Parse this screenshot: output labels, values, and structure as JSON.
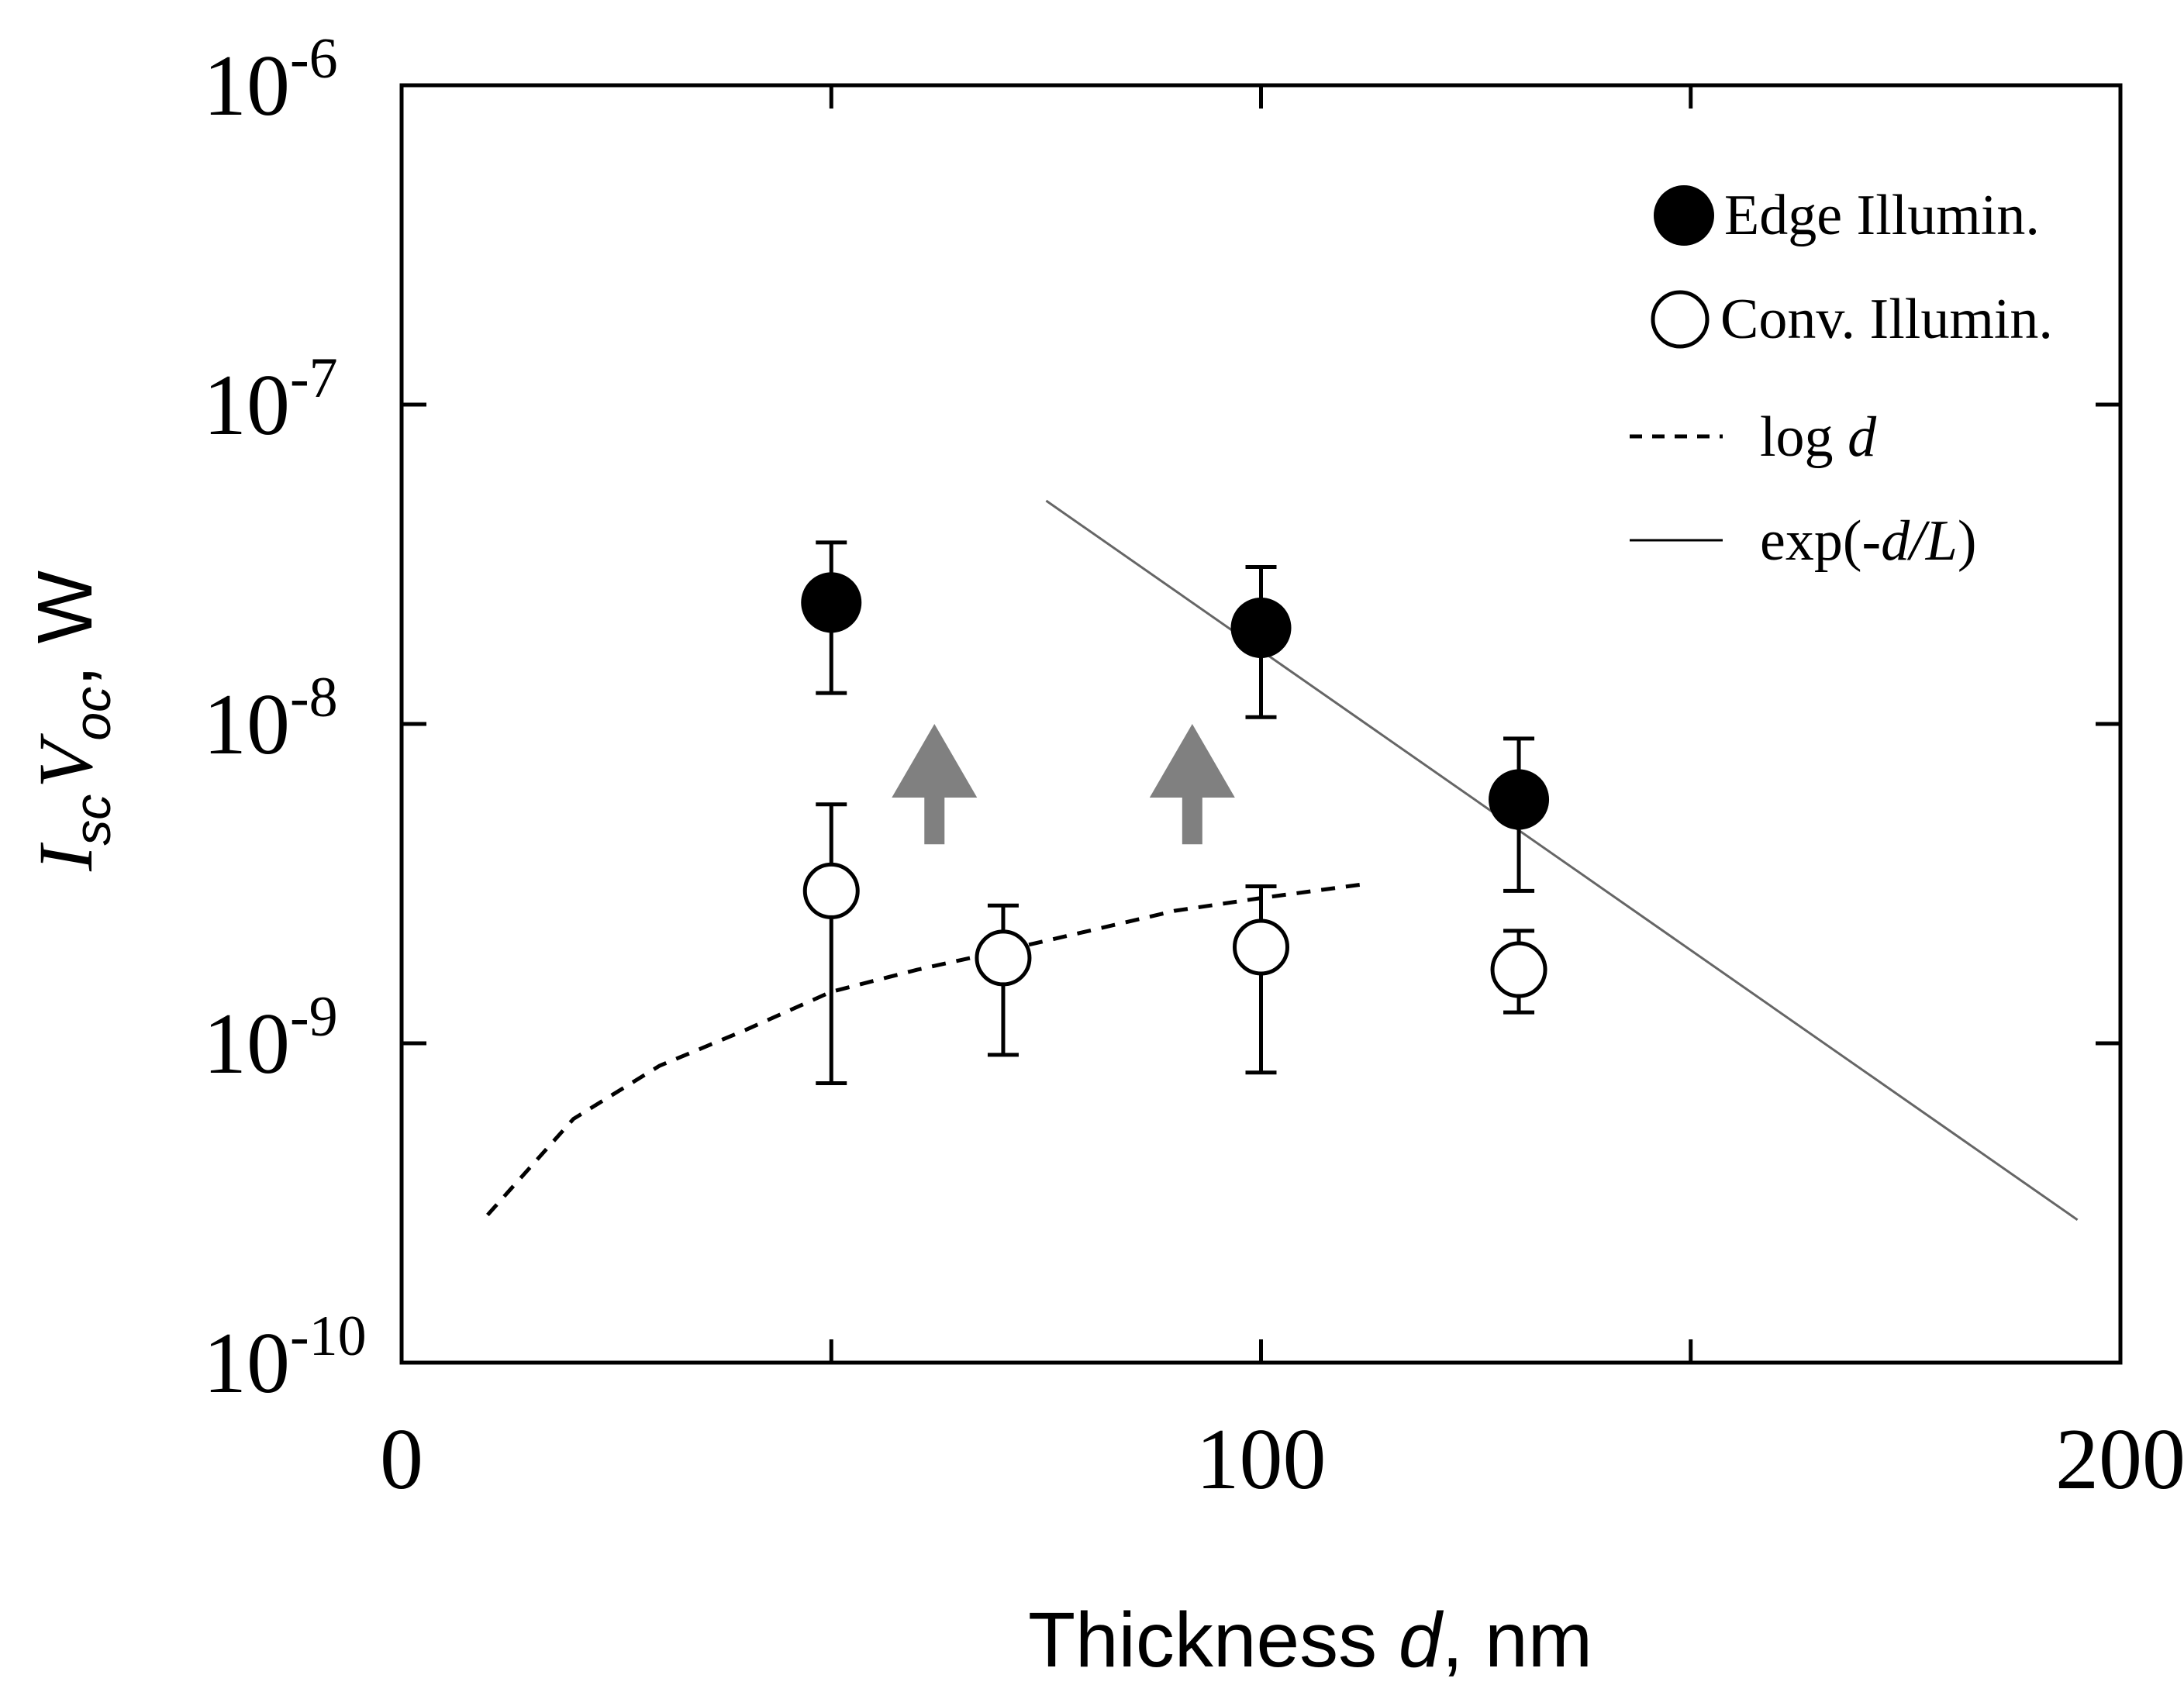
{
  "chart_data": {
    "type": "scatter",
    "title": "",
    "xlabel": {
      "main": "Thickness ",
      "var": "d",
      "unit": ", nm"
    },
    "ylabel": {
      "I": "I",
      "I_sub": "sc",
      "V": "V",
      "V_sub": "oc",
      "unit": ", W"
    },
    "xlim": [
      0,
      200
    ],
    "ylim_log10": [
      -10,
      -6
    ],
    "x_ticks": [
      {
        "value": 0,
        "label": "0"
      },
      {
        "value": 100,
        "label": "100"
      },
      {
        "value": 200,
        "label": "200"
      }
    ],
    "x_minor_ticks": [
      50,
      150
    ],
    "y_ticks": [
      {
        "exp": -10,
        "base": "10",
        "sup": "-10"
      },
      {
        "exp": -9,
        "base": "10",
        "sup": "-9"
      },
      {
        "exp": -8,
        "base": "10",
        "sup": "-8"
      },
      {
        "exp": -7,
        "base": "10",
        "sup": "-7"
      },
      {
        "exp": -6,
        "base": "10",
        "sup": "-6"
      }
    ],
    "series": [
      {
        "name": "Edge Illumin.",
        "marker": "filled-circle",
        "points": [
          {
            "x": 50,
            "y": 2.4e-08,
            "y_low": 1.25e-08,
            "y_high": 3.7e-08
          },
          {
            "x": 100,
            "y": 2e-08,
            "y_low": 1.05e-08,
            "y_high": 3.1e-08
          },
          {
            "x": 130,
            "y": 5.8e-09,
            "y_low": 3e-09,
            "y_high": 9e-09
          }
        ]
      },
      {
        "name": "Conv. Illumin.",
        "marker": "open-circle",
        "points": [
          {
            "x": 50,
            "y": 3e-09,
            "y_low": 7.5e-10,
            "y_high": 5.6e-09
          },
          {
            "x": 70,
            "y": 1.85e-09,
            "y_low": 9.2e-10,
            "y_high": 2.7e-09
          },
          {
            "x": 100,
            "y": 2e-09,
            "y_low": 8.1e-10,
            "y_high": 3.1e-09
          },
          {
            "x": 130,
            "y": 1.7e-09,
            "y_low": 1.25e-09,
            "y_high": 2.25e-09
          }
        ]
      }
    ],
    "fit_lines": [
      {
        "name": "log d",
        "style": "dashed",
        "points": [
          {
            "x": 10,
            "y": 2.9e-10
          },
          {
            "x": 20,
            "y": 5.8e-10
          },
          {
            "x": 30,
            "y": 8.5e-10
          },
          {
            "x": 40,
            "y": 1.1e-09
          },
          {
            "x": 50,
            "y": 1.45e-09
          },
          {
            "x": 60,
            "y": 1.7e-09
          },
          {
            "x": 70,
            "y": 1.95e-09
          },
          {
            "x": 80,
            "y": 2.25e-09
          },
          {
            "x": 90,
            "y": 2.6e-09
          },
          {
            "x": 100,
            "y": 2.85e-09
          },
          {
            "x": 112,
            "y": 3.15e-09
          }
        ]
      },
      {
        "name": "exp(-d/L)",
        "style": "solid",
        "points": [
          {
            "x": 75,
            "y": 5e-08
          },
          {
            "x": 195,
            "y": 2.8e-10
          }
        ]
      }
    ],
    "annotations": [
      {
        "type": "up-arrow",
        "x": 62,
        "y_base": 4.2e-09,
        "y_tip": 1e-08
      },
      {
        "type": "up-arrow",
        "x": 92,
        "y_base": 4.2e-09,
        "y_tip": 1e-08
      }
    ],
    "legend": {
      "position": "top-right",
      "entries": [
        {
          "text": "Edge Illumin.",
          "marker": "filled-circle"
        },
        {
          "text": "Conv. Illumin.",
          "marker": "open-circle"
        },
        {
          "text": "log ",
          "italic": "d",
          "tail": "",
          "marker": "dashed-line"
        },
        {
          "text": "exp(-",
          "italic": "d/L",
          "tail": ")",
          "marker": "solid-line"
        }
      ]
    },
    "colors": {
      "axis": "#000000",
      "edge_marker": "#000000",
      "conv_marker_fill": "#ffffff",
      "fit_solid": "#666666",
      "arrow": "#808080"
    }
  }
}
